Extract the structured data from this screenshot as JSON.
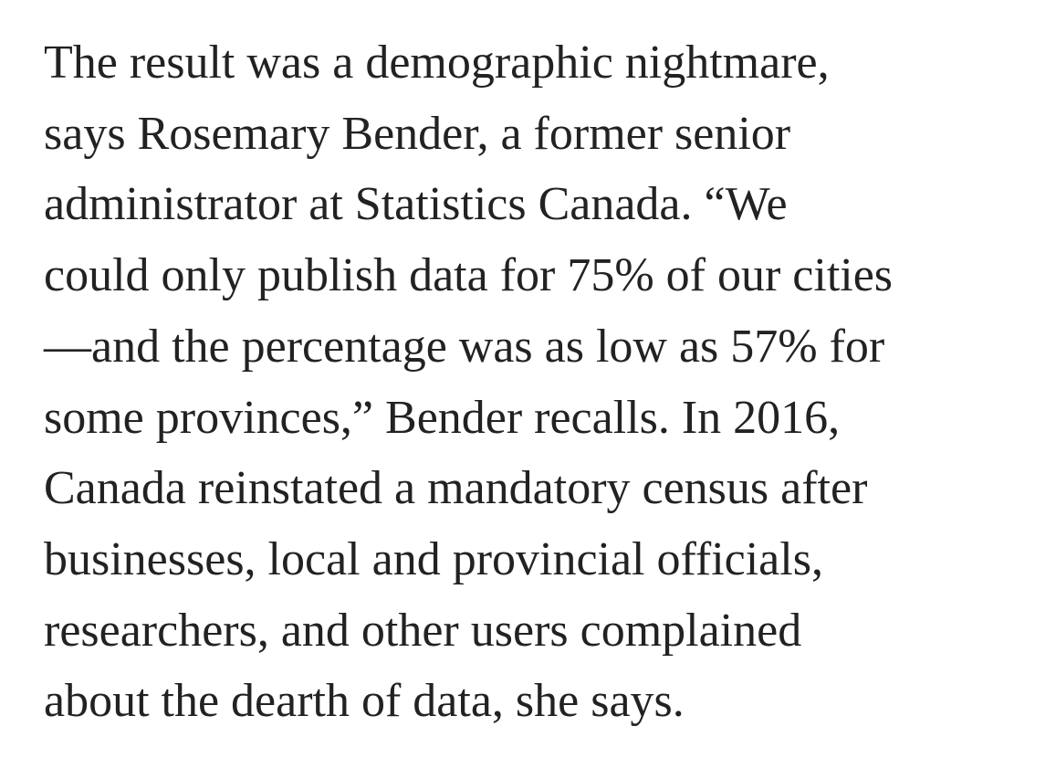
{
  "article": {
    "lines": [
      "The result was a demographic nightmare,",
      "says Rosemary Bender, a former senior",
      "administrator at Statistics Canada. “We",
      "could only publish data for 75% of our cities",
      "—and the percentage was as low as 57% for",
      "some provinces,” Bender recalls. In 2016,",
      "Canada reinstated a mandatory census after",
      "businesses, local and provincial officials,",
      "researchers, and other users complained",
      "about the dearth of data, she says."
    ]
  },
  "colors": {
    "text": "#222222",
    "background": "#ffffff"
  }
}
